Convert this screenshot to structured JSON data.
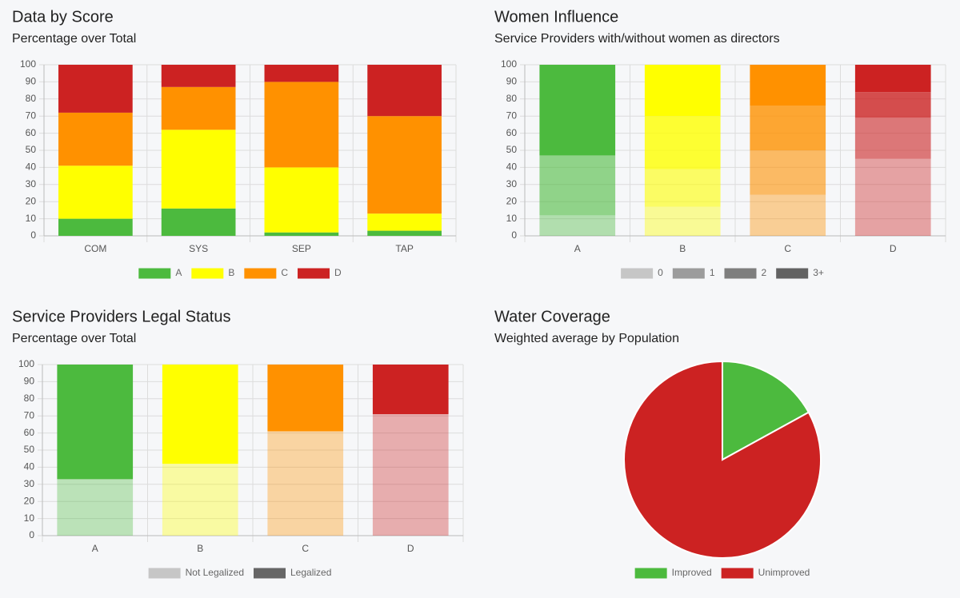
{
  "chart_data": [
    {
      "type": "stacked_bar",
      "title": "Data by Score",
      "subtitle": "Percentage over Total",
      "categories": [
        "COM",
        "SYS",
        "SEP",
        "TAP"
      ],
      "series": [
        {
          "name": "A",
          "color": "#4cba3e",
          "values": [
            10,
            16,
            2,
            3
          ]
        },
        {
          "name": "B",
          "color": "#ffff00",
          "values": [
            31,
            46,
            38,
            10
          ]
        },
        {
          "name": "C",
          "color": "#ff9100",
          "values": [
            31,
            25,
            50,
            57
          ]
        },
        {
          "name": "D",
          "color": "#cc2222",
          "values": [
            28,
            13,
            10,
            30
          ]
        }
      ],
      "ylim": [
        0,
        100
      ],
      "yticks": [
        0,
        10,
        20,
        30,
        40,
        50,
        60,
        70,
        80,
        90,
        100
      ],
      "grid": true
    },
    {
      "type": "stacked_bar",
      "title": "Women Influence",
      "subtitle": "Service Providers with/without women as directors",
      "categories": [
        "A",
        "B",
        "C",
        "D"
      ],
      "category_colors": [
        "#4cba3e",
        "#ffff00",
        "#ff9100",
        "#cc2222"
      ],
      "series": [
        {
          "name": "0",
          "color": "#c6c6c6",
          "opacity": 0.4,
          "values": [
            12,
            17,
            24,
            45
          ]
        },
        {
          "name": "1",
          "color": "#9c9c9c",
          "opacity": 0.6,
          "values": [
            35,
            22,
            26,
            24
          ]
        },
        {
          "name": "2",
          "color": "#7e7e7e",
          "opacity": 0.8,
          "values": [
            0,
            31,
            26,
            15
          ]
        },
        {
          "name": "3+",
          "color": "#626262",
          "opacity": 1,
          "values": [
            53,
            30,
            24,
            16
          ]
        }
      ],
      "ylim": [
        0,
        100
      ],
      "yticks": [
        0,
        10,
        20,
        30,
        40,
        50,
        60,
        70,
        80,
        90,
        100
      ],
      "grid": true
    },
    {
      "type": "stacked_bar",
      "title": "Service Providers Legal Status",
      "subtitle": "Percentage over Total",
      "categories": [
        "A",
        "B",
        "C",
        "D"
      ],
      "category_colors": [
        "#4cba3e",
        "#ffff00",
        "#ff9100",
        "#cc2222"
      ],
      "series": [
        {
          "name": "Not Legalized",
          "color": "#c6c6c6",
          "opacity": 0.35,
          "values": [
            33,
            42,
            61,
            71
          ]
        },
        {
          "name": "Legalized",
          "color": "#666666",
          "opacity": 1,
          "values": [
            67,
            58,
            39,
            29
          ]
        }
      ],
      "ylim": [
        0,
        100
      ],
      "yticks": [
        0,
        10,
        20,
        30,
        40,
        50,
        60,
        70,
        80,
        90,
        100
      ],
      "grid": true
    },
    {
      "type": "pie",
      "title": "Water Coverage",
      "subtitle": "Weighted average by Population",
      "categories": [
        "Improved",
        "Unimproved"
      ],
      "values": [
        17,
        83
      ],
      "colors": [
        "#4cba3e",
        "#cc2222"
      ]
    }
  ]
}
